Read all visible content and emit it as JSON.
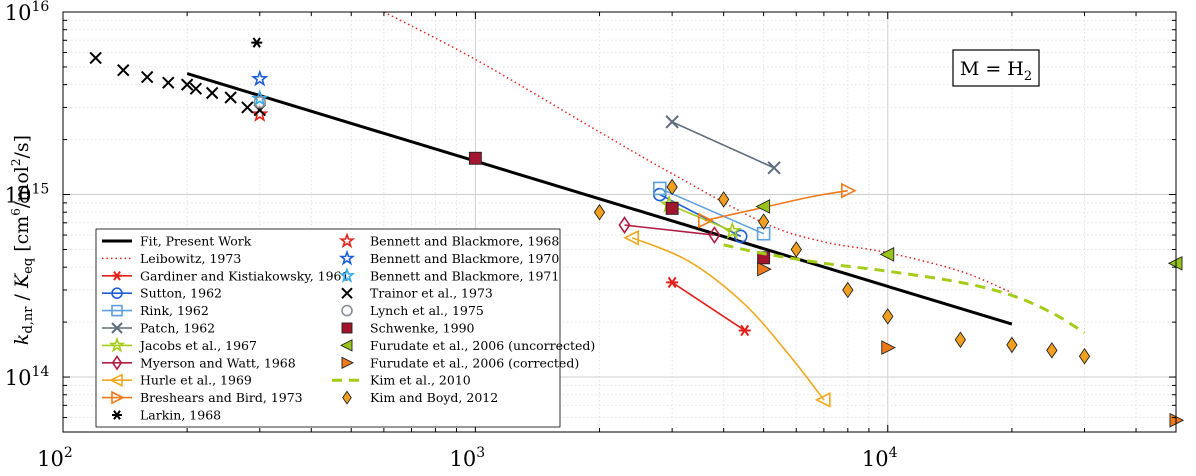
{
  "chart_data": {
    "type": "scatter",
    "title": "",
    "xlabel": "",
    "ylabel": "k_d,nr / K_eq [cm^6/mol^2/s]",
    "ylabel_parts": {
      "k": "k",
      "k_sub": "d,nr",
      "slash": " / ",
      "K": "K",
      "K_sub": "eq",
      "unit_open": "[cm",
      "unit_exp1": "6",
      "unit_mid": "/mol",
      "unit_exp2": "2",
      "unit_close": "/s]"
    },
    "x_scale": "log",
    "y_scale": "log",
    "xlim": [
      100,
      50000
    ],
    "ylim": [
      50000000000000.0,
      1e+16
    ],
    "x_ticks": [
      100,
      1000,
      10000
    ],
    "y_ticks": [
      100000000000000.0,
      1000000000000000.0,
      1e+16
    ],
    "tick_labels": {
      "x": [
        {
          "base": "10",
          "exp": "2"
        },
        {
          "base": "10",
          "exp": "3"
        },
        {
          "base": "10",
          "exp": "4"
        }
      ],
      "y": [
        {
          "base": "10",
          "exp": "14"
        },
        {
          "base": "10",
          "exp": "15"
        },
        {
          "base": "10",
          "exp": "16"
        }
      ]
    },
    "grid": true,
    "annotation": {
      "text_prefix": "M = H",
      "subscript": "2",
      "position": "top-right"
    },
    "legend_position": "bottom-left",
    "series": [
      {
        "name": "Fit, Present Work",
        "style": "line",
        "color": "#000000",
        "dash": "solid",
        "width": 3,
        "x": [
          200,
          20000
        ],
        "y": [
          4600000000000000.0,
          195000000000000.0
        ]
      },
      {
        "name": "Leibowitz, 1973",
        "style": "line",
        "color": "#e32119",
        "dash": "dot",
        "width": 1.5,
        "x": [
          600,
          1000,
          2000,
          3000,
          5000,
          7000,
          10000,
          15000,
          20000
        ],
        "y": [
          1e+16,
          5500000000000000.0,
          2200000000000000.0,
          1300000000000000.0,
          700000000000000.0,
          550000000000000.0,
          480000000000000.0,
          380000000000000.0,
          290000000000000.0
        ]
      },
      {
        "name": "Gardiner and Kistiakowsky, 1961",
        "style": "line-marker",
        "marker": "asterisk",
        "color": "#e32119",
        "x": [
          3000,
          4500
        ],
        "y": [
          330000000000000.0,
          180000000000000.0
        ]
      },
      {
        "name": "Sutton, 1962",
        "style": "line-marker",
        "marker": "circle",
        "color": "#1e5fd8",
        "x": [
          2800,
          4400
        ],
        "y": [
          1000000000000000.0,
          590000000000000.0
        ]
      },
      {
        "name": "Rink, 1962",
        "style": "line-marker",
        "marker": "square",
        "color": "#5aa0dc",
        "x": [
          2800,
          5000
        ],
        "y": [
          1080000000000000.0,
          610000000000000.0
        ]
      },
      {
        "name": "Patch, 1962",
        "style": "line-marker",
        "marker": "x",
        "color": "#5f6d7c",
        "x": [
          3000,
          5300
        ],
        "y": [
          2500000000000000.0,
          1400000000000000.0
        ]
      },
      {
        "name": "Jacobs et al., 1967",
        "style": "line-marker",
        "marker": "star",
        "color": "#a6cc1a",
        "x": [
          2950,
          4200
        ],
        "y": [
          880000000000000.0,
          630000000000000.0
        ]
      },
      {
        "name": "Myerson and Watt, 1968",
        "style": "line-marker",
        "marker": "diamond",
        "color": "#b01e44",
        "x": [
          2300,
          3800
        ],
        "y": [
          680000000000000.0,
          600000000000000.0
        ]
      },
      {
        "name": "Hurle et al., 1969",
        "style": "curve-marker",
        "marker": "triangle-left",
        "color": "#f2a81d",
        "x": [
          2400,
          3300,
          4500,
          5800,
          7000
        ],
        "y": [
          580000000000000.0,
          430000000000000.0,
          250000000000000.0,
          130000000000000.0,
          75000000000000.0
        ]
      },
      {
        "name": "Breshears and Bird, 1973",
        "style": "curve-marker",
        "marker": "triangle-right",
        "color": "#f07a1a",
        "x": [
          3600,
          5000,
          6500,
          8000
        ],
        "y": [
          720000000000000.0,
          850000000000000.0,
          970000000000000.0,
          1050000000000000.0
        ]
      },
      {
        "name": "Larkin, 1968",
        "style": "marker",
        "marker": "asterisk",
        "color": "#000000",
        "x": [
          295
        ],
        "y": [
          6800000000000000.0
        ]
      },
      {
        "name": "Bennett and Blackmore, 1968",
        "style": "marker",
        "marker": "star",
        "color": "#e32119",
        "x": [
          300
        ],
        "y": [
          2750000000000000.0
        ]
      },
      {
        "name": "Bennett and Blackmore, 1970",
        "style": "marker",
        "marker": "star",
        "color": "#1e5fd8",
        "x": [
          300
        ],
        "y": [
          4300000000000000.0
        ]
      },
      {
        "name": "Bennett and Blackmore, 1971",
        "style": "marker",
        "marker": "star",
        "color": "#33aaee",
        "x": [
          300
        ],
        "y": [
          3350000000000000.0
        ]
      },
      {
        "name": "Trainor et al., 1973",
        "style": "marker",
        "marker": "x",
        "color": "#000000",
        "x": [
          120,
          140,
          160,
          180,
          200,
          210,
          230,
          255,
          280,
          300
        ],
        "y": [
          5600000000000000.0,
          4800000000000000.0,
          4400000000000000.0,
          4100000000000000.0,
          4000000000000000.0,
          3800000000000000.0,
          3600000000000000.0,
          3400000000000000.0,
          3000000000000000.0,
          2900000000000000.0
        ]
      },
      {
        "name": "Lynch et al., 1975",
        "style": "marker",
        "marker": "circle",
        "color": "#8a9099",
        "x": [
          300
        ],
        "y": [
          3200000000000000.0
        ]
      },
      {
        "name": "Schwenke, 1990",
        "style": "marker",
        "marker": "filled-square",
        "color": "#a3152e",
        "x": [
          1000,
          3000,
          5000
        ],
        "y": [
          1580000000000000.0,
          840000000000000.0,
          450000000000000.0
        ]
      },
      {
        "name": "Furudate et al., 2006 (uncorrected)",
        "style": "marker",
        "marker": "filled-triangle-left",
        "color": "#99c31c",
        "x": [
          5000,
          10000,
          50000
        ],
        "y": [
          860000000000000.0,
          470000000000000.0,
          420000000000000.0
        ]
      },
      {
        "name": "Furudate et al., 2006 (corrected)",
        "style": "marker",
        "marker": "filled-triangle-right",
        "color": "#f07a1a",
        "x": [
          5000,
          10000,
          50000
        ],
        "y": [
          390000000000000.0,
          145000000000000.0,
          58000000000000.0
        ]
      },
      {
        "name": "Kim et al., 2010",
        "style": "line",
        "color": "#a6cc1a",
        "dash": "dash",
        "width": 3,
        "x": [
          4000,
          5000,
          7000,
          10000,
          15000,
          20000,
          25000,
          30000
        ],
        "y": [
          530000000000000.0,
          475000000000000.0,
          420000000000000.0,
          380000000000000.0,
          330000000000000.0,
          280000000000000.0,
          225000000000000.0,
          175000000000000.0
        ]
      },
      {
        "name": "Kim and Boyd, 2012",
        "style": "marker",
        "marker": "filled-diamond",
        "color": "#f0a01e",
        "x": [
          2000,
          3000,
          4000,
          5000,
          6000,
          8000,
          10000,
          15000,
          20000,
          25000,
          30000
        ],
        "y": [
          800000000000000.0,
          1100000000000000.0,
          940000000000000.0,
          710000000000000.0,
          500000000000000.0,
          300000000000000.0,
          215000000000000.0,
          160000000000000.0,
          150000000000000.0,
          140000000000000.0,
          130000000000000.0
        ]
      }
    ],
    "legend_columns": [
      [
        "Fit, Present Work",
        "Leibowitz, 1973",
        "Gardiner and Kistiakowsky, 1961",
        "Sutton, 1962",
        "Rink, 1962",
        "Patch, 1962",
        "Jacobs et al., 1967",
        "Myerson and Watt, 1968",
        "Hurle et al., 1969",
        "Breshears and Bird, 1973",
        "Larkin, 1968"
      ],
      [
        "Bennett and Blackmore, 1968",
        "Bennett and Blackmore, 1970",
        "Bennett and Blackmore, 1971",
        "Trainor et al., 1973",
        "Lynch et al., 1975",
        "Schwenke, 1990",
        "Furudate et al., 2006 (uncorrected)",
        "Furudate et al., 2006 (corrected)",
        "Kim et al., 2010",
        "Kim and Boyd, 2012"
      ]
    ]
  }
}
